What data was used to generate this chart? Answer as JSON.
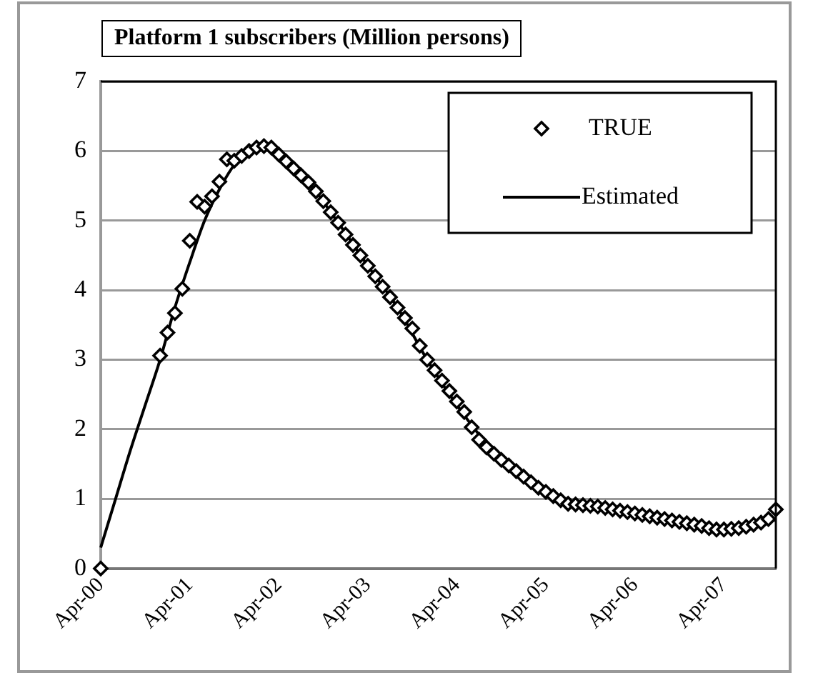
{
  "chart_data": {
    "type": "scatter",
    "title": "Platform 1 subscribers (Million persons)",
    "xlim": [
      "2000-04",
      "2007-11"
    ],
    "xticks": [
      {
        "value": "2000-04",
        "label": "Apr-00"
      },
      {
        "value": "2001-04",
        "label": "Apr-01"
      },
      {
        "value": "2002-04",
        "label": "Apr-02"
      },
      {
        "value": "2003-04",
        "label": "Apr-03"
      },
      {
        "value": "2004-04",
        "label": "Apr-04"
      },
      {
        "value": "2005-04",
        "label": "Apr-05"
      },
      {
        "value": "2006-04",
        "label": "Apr-06"
      },
      {
        "value": "2007-04",
        "label": "Apr-07"
      }
    ],
    "ylim": [
      0,
      7
    ],
    "yticks": [
      0,
      1,
      2,
      3,
      4,
      5,
      6,
      7
    ],
    "grid": "y",
    "legend": "top right",
    "series": [
      {
        "name": "TRUE",
        "type": "scatter",
        "marker": "diamond",
        "color": "#000000",
        "x": [
          "2000-04",
          "2000-12",
          "2001-01",
          "2001-02",
          "2001-03",
          "2001-04",
          "2001-05",
          "2001-06",
          "2001-07",
          "2001-08",
          "2001-09",
          "2001-10",
          "2001-11",
          "2001-12",
          "2002-01",
          "2002-02",
          "2002-03",
          "2002-04",
          "2002-05",
          "2002-06",
          "2002-07",
          "2002-08",
          "2002-09",
          "2002-10",
          "2002-11",
          "2002-12",
          "2003-01",
          "2003-02",
          "2003-03",
          "2003-04",
          "2003-05",
          "2003-06",
          "2003-07",
          "2003-08",
          "2003-09",
          "2003-10",
          "2003-11",
          "2003-12",
          "2004-01",
          "2004-02",
          "2004-03",
          "2004-04",
          "2004-05",
          "2004-06",
          "2004-07",
          "2004-08",
          "2004-09",
          "2004-10",
          "2004-11",
          "2004-12",
          "2005-01",
          "2005-02",
          "2005-03",
          "2005-04",
          "2005-05",
          "2005-06",
          "2005-07",
          "2005-08",
          "2005-09",
          "2005-10",
          "2005-11",
          "2005-12",
          "2006-01",
          "2006-02",
          "2006-03",
          "2006-04",
          "2006-05",
          "2006-06",
          "2006-07",
          "2006-08",
          "2006-09",
          "2006-10",
          "2006-11",
          "2006-12",
          "2007-01",
          "2007-02",
          "2007-03",
          "2007-04",
          "2007-05",
          "2007-06",
          "2007-07",
          "2007-08",
          "2007-09",
          "2007-10",
          "2007-11"
        ],
        "values": [
          0,
          3.06,
          3.39,
          3.67,
          4.02,
          4.71,
          5.27,
          5.2,
          5.35,
          5.56,
          5.88,
          5.86,
          5.93,
          6.0,
          6.05,
          6.07,
          6.05,
          5.95,
          5.85,
          5.75,
          5.65,
          5.55,
          5.42,
          5.28,
          5.12,
          4.97,
          4.8,
          4.65,
          4.5,
          4.35,
          4.2,
          4.05,
          3.9,
          3.75,
          3.6,
          3.45,
          3.2,
          3.0,
          2.85,
          2.7,
          2.55,
          2.4,
          2.25,
          2.03,
          1.85,
          1.74,
          1.65,
          1.56,
          1.48,
          1.4,
          1.32,
          1.24,
          1.16,
          1.1,
          1.04,
          0.98,
          0.93,
          0.92,
          0.91,
          0.9,
          0.89,
          0.87,
          0.85,
          0.83,
          0.81,
          0.79,
          0.77,
          0.75,
          0.73,
          0.71,
          0.69,
          0.67,
          0.65,
          0.63,
          0.61,
          0.58,
          0.56,
          0.56,
          0.57,
          0.58,
          0.6,
          0.63,
          0.66,
          0.71,
          0.85
        ]
      },
      {
        "name": "Estimated",
        "type": "line",
        "marker": "none",
        "line_style": "solid",
        "color": "#000000",
        "x": [
          "2000-04",
          "2000-06",
          "2000-08",
          "2000-10",
          "2000-12",
          "2001-02",
          "2001-04",
          "2001-06",
          "2001-08",
          "2001-10",
          "2001-12",
          "2002-02",
          "2002-04",
          "2002-08",
          "2002-12",
          "2003-04",
          "2003-08",
          "2003-12",
          "2004-04",
          "2004-08",
          "2004-12",
          "2005-04",
          "2005-08",
          "2005-12",
          "2006-04",
          "2006-08",
          "2006-12",
          "2007-04",
          "2007-08",
          "2007-11"
        ],
        "values": [
          0.3,
          1.0,
          1.7,
          2.35,
          3.0,
          3.75,
          4.4,
          5.0,
          5.45,
          5.8,
          6.0,
          6.05,
          5.95,
          5.55,
          4.97,
          4.35,
          3.75,
          3.0,
          2.35,
          1.8,
          1.42,
          1.12,
          0.95,
          0.87,
          0.8,
          0.72,
          0.65,
          0.6,
          0.62,
          0.7
        ]
      }
    ]
  }
}
